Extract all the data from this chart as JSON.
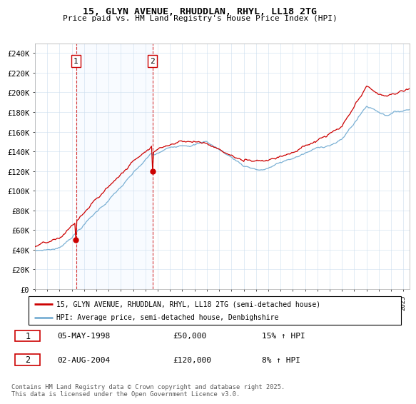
{
  "title": "15, GLYN AVENUE, RHUDDLAN, RHYL, LL18 2TG",
  "subtitle": "Price paid vs. HM Land Registry's House Price Index (HPI)",
  "ylim": [
    0,
    250000
  ],
  "yticks": [
    0,
    20000,
    40000,
    60000,
    80000,
    100000,
    120000,
    140000,
    160000,
    180000,
    200000,
    220000,
    240000
  ],
  "ytick_labels": [
    "£0",
    "£20K",
    "£40K",
    "£60K",
    "£80K",
    "£100K",
    "£120K",
    "£140K",
    "£160K",
    "£180K",
    "£200K",
    "£220K",
    "£240K"
  ],
  "red_color": "#cc0000",
  "blue_color": "#7ab0d4",
  "shade_color": "#ddeeff",
  "transaction1_year": 1998.35,
  "transaction1_price": 50000,
  "transaction1_date": "05-MAY-1998",
  "transaction1_hpi": "15% ↑ HPI",
  "transaction2_year": 2004.58,
  "transaction2_price": 120000,
  "transaction2_date": "02-AUG-2004",
  "transaction2_hpi": "8% ↑ HPI",
  "legend1": "15, GLYN AVENUE, RHUDDLAN, RHYL, LL18 2TG (semi-detached house)",
  "legend2": "HPI: Average price, semi-detached house, Denbighshire",
  "footnote": "Contains HM Land Registry data © Crown copyright and database right 2025.\nThis data is licensed under the Open Government Licence v3.0.",
  "xmin": 1995.0,
  "xmax": 2025.5,
  "grid_color": "#ccddee",
  "bg_color": "#ffffff"
}
